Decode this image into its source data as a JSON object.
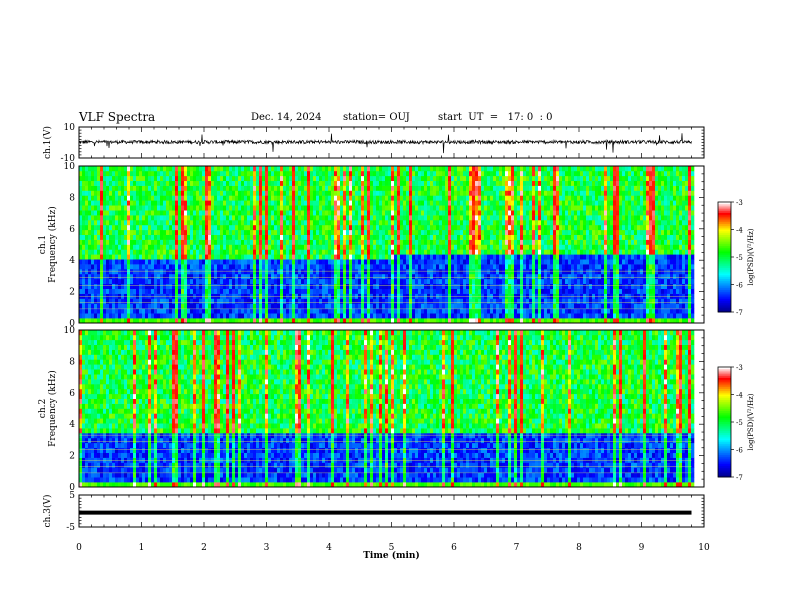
{
  "header": {
    "title": "VLF Spectra",
    "date": "Dec. 14, 2024",
    "station": "station= OUJ",
    "start": "start  UT  =   17: 0  : 0"
  },
  "chart_data": [
    {
      "id": "ch1_waveform",
      "type": "line",
      "ylabel": "ch.1(V)",
      "ylim": [
        -10,
        10
      ],
      "yticks": [
        "10",
        "-10"
      ],
      "description_series": [
        {
          "values_approx_level": 0.3,
          "noise_amplitude": 2.5
        }
      ],
      "xlim": [
        0,
        10
      ]
    },
    {
      "id": "ch1_spectrogram",
      "type": "heatmap",
      "ylabel": "ch.1\nFrequency  (kHz)",
      "ylim": [
        0,
        10
      ],
      "yticks": [
        "0",
        "2",
        "4",
        "6",
        "8",
        "10"
      ],
      "xlim": [
        0,
        10
      ],
      "data_x_end": 9.8,
      "colorbar": {
        "label": "log(PSD)(V²/Hz)",
        "range": [
          -7,
          -3
        ],
        "ticks": [
          "-3",
          "-4",
          "-5",
          "-6",
          "-7"
        ]
      },
      "bands": {
        "noise_floor_top_khz": 4.0,
        "noise_floor_top_khz_after_5min": 4.5
      }
    },
    {
      "id": "ch2_spectrogram",
      "type": "heatmap",
      "ylabel": "ch.2\nFrequency  (kHz)",
      "ylim": [
        0,
        10
      ],
      "yticks": [
        "0",
        "2",
        "4",
        "6",
        "8",
        "10"
      ],
      "xlim": [
        0,
        10
      ],
      "data_x_end": 9.8,
      "colorbar": {
        "label": "log(PSD)(V²/Hz)",
        "range": [
          -7,
          -3
        ],
        "ticks": [
          "-3",
          "-4",
          "-5",
          "-6",
          "-7"
        ]
      },
      "bands": {
        "noise_floor_top_khz": 3.5
      }
    },
    {
      "id": "ch3_waveform",
      "type": "line",
      "ylabel": "ch.3(V)",
      "ylim": [
        -5,
        5
      ],
      "yticks": [
        "5",
        "-5"
      ],
      "xlim": [
        0,
        10
      ],
      "series": [
        {
          "constant": -0.5
        }
      ]
    }
  ],
  "xaxis": {
    "label": "Time  (min)",
    "ticks": [
      "0",
      "1",
      "2",
      "3",
      "4",
      "5",
      "6",
      "7",
      "8",
      "9",
      "10"
    ]
  },
  "colors": {
    "colormap": [
      "#000080",
      "#0000ff",
      "#00ffff",
      "#00ff00",
      "#ffff00",
      "#ff0000",
      "#ffffff"
    ]
  }
}
